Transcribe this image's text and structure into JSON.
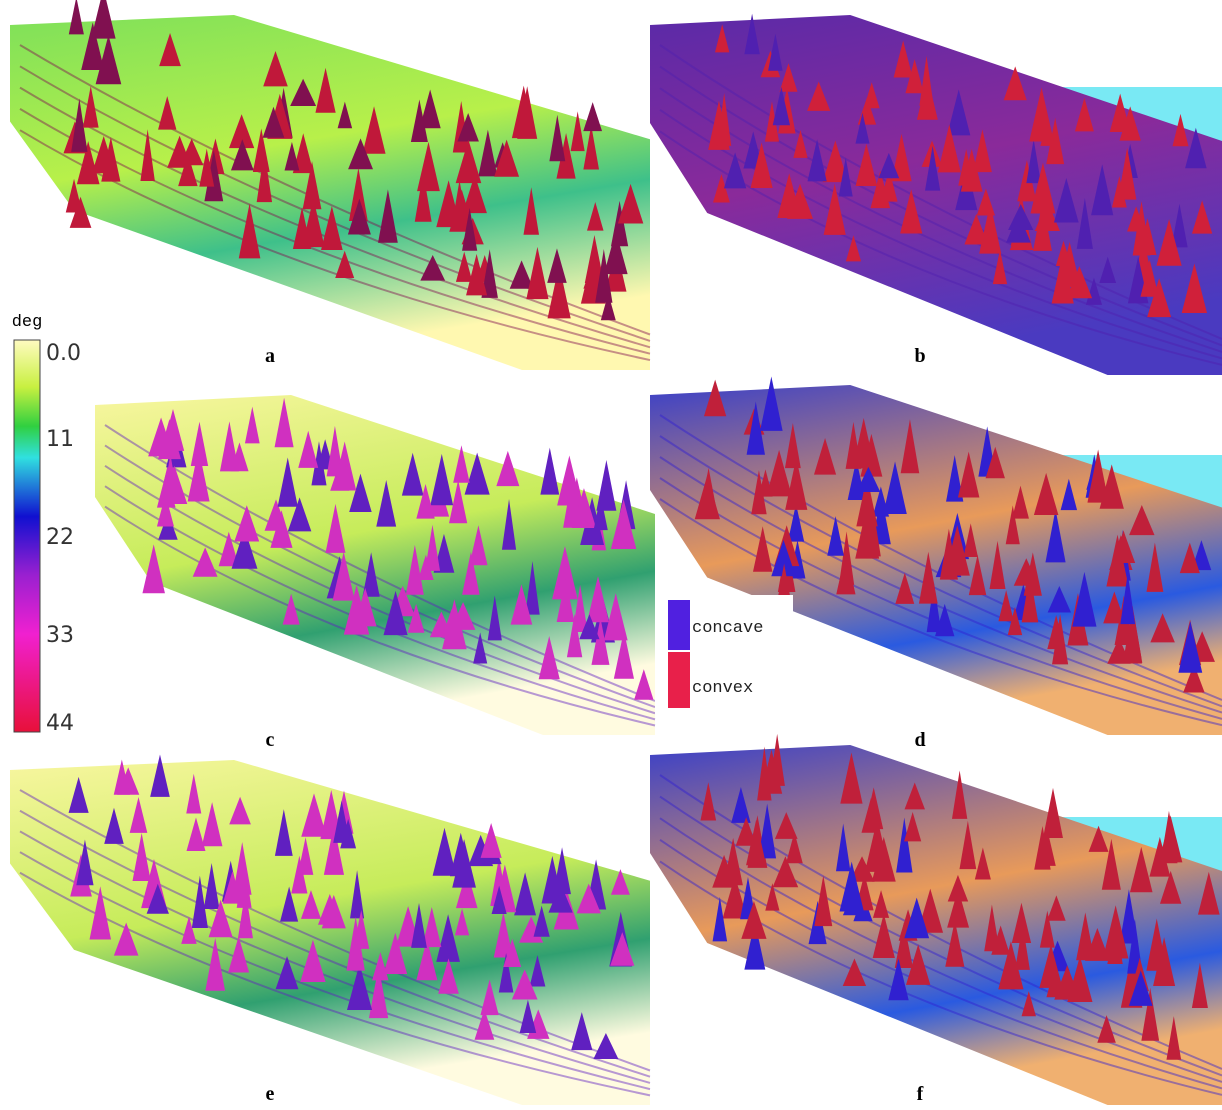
{
  "colorbar": {
    "unit": "deg",
    "range": [
      0,
      44
    ],
    "ticks": [
      {
        "value": 0,
        "label": "0.0"
      },
      11,
      22,
      33,
      44
    ]
  },
  "panels": [
    {
      "label": "a"
    },
    {
      "label": "b"
    },
    {
      "label": "c"
    },
    {
      "label": "d"
    },
    {
      "label": "e"
    },
    {
      "label": "f"
    }
  ],
  "legend": {
    "items": [
      {
        "label": "concave"
      },
      {
        "label": "convex"
      }
    ]
  }
}
